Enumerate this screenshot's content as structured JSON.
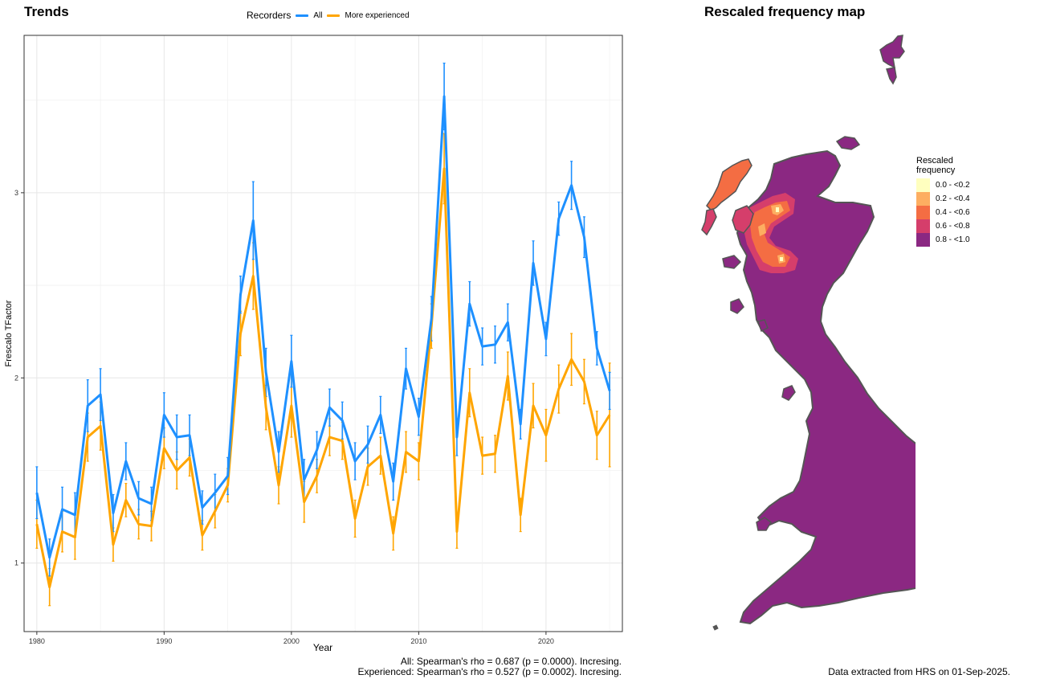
{
  "trends": {
    "title": "Trends",
    "legend_title": "Recorders",
    "stats_all": "All: Spearman's rho = 0.687 (p = 0.0000). Incresing.",
    "stats_exp": "Experienced: Spearman's rho = 0.527 (p = 0.0002). Incresing."
  },
  "map": {
    "title": "Rescaled frequency map",
    "legend_title_line1": "Rescaled",
    "legend_title_line2": "frequency",
    "legend": [
      {
        "label": "0.0 - <0.2",
        "color": "#ffffbf"
      },
      {
        "label": "0.2 - <0.4",
        "color": "#fdae61"
      },
      {
        "label": "0.4 - <0.6",
        "color": "#f46d43"
      },
      {
        "label": "0.6 - <0.8",
        "color": "#d53e6b"
      },
      {
        "label": "0.8 - <1.0",
        "color": "#8b2882"
      }
    ],
    "source": "Data extracted from HRS on 01-Sep-2025."
  },
  "chart_data": {
    "type": "line",
    "xlabel": "Year",
    "ylabel": "Frescalo TFactor",
    "xlim": [
      1979,
      2026
    ],
    "ylim": [
      0.63,
      3.85
    ],
    "xticks": [
      1980,
      1990,
      2000,
      2010,
      2020
    ],
    "yticks": [
      1,
      2,
      3
    ],
    "grid": true,
    "legend_position": "top",
    "x": [
      1980,
      1981,
      1982,
      1983,
      1984,
      1985,
      1986,
      1987,
      1988,
      1989,
      1990,
      1991,
      1992,
      1993,
      1994,
      1995,
      1996,
      1997,
      1998,
      1999,
      2000,
      2001,
      2002,
      2003,
      2004,
      2005,
      2006,
      2007,
      2008,
      2009,
      2010,
      2011,
      2012,
      2013,
      2014,
      2015,
      2016,
      2017,
      2018,
      2019,
      2020,
      2021,
      2022,
      2023,
      2024,
      2025
    ],
    "series": [
      {
        "name": "All",
        "color": "#1e90ff",
        "values": [
          1.38,
          1.03,
          1.29,
          1.26,
          1.85,
          1.91,
          1.27,
          1.55,
          1.35,
          1.32,
          1.8,
          1.68,
          1.69,
          1.3,
          1.38,
          1.47,
          2.45,
          2.85,
          2.03,
          1.6,
          2.09,
          1.45,
          1.61,
          1.84,
          1.77,
          1.55,
          1.64,
          1.8,
          1.44,
          2.05,
          1.79,
          2.32,
          3.52,
          1.68,
          2.4,
          2.17,
          2.18,
          2.3,
          1.75,
          2.62,
          2.21,
          2.86,
          3.04,
          2.76,
          2.16,
          1.93
        ],
        "err": [
          0.14,
          0.1,
          0.12,
          0.12,
          0.14,
          0.14,
          0.1,
          0.1,
          0.09,
          0.09,
          0.12,
          0.12,
          0.11,
          0.09,
          0.1,
          0.1,
          0.1,
          0.21,
          0.13,
          0.11,
          0.14,
          0.11,
          0.1,
          0.1,
          0.1,
          0.1,
          0.1,
          0.1,
          0.1,
          0.11,
          0.1,
          0.12,
          0.18,
          0.1,
          0.12,
          0.1,
          0.1,
          0.1,
          0.08,
          0.12,
          0.09,
          0.09,
          0.13,
          0.11,
          0.09,
          0.1
        ]
      },
      {
        "name": "More experienced",
        "color": "#ffa500",
        "values": [
          1.21,
          0.87,
          1.17,
          1.14,
          1.68,
          1.74,
          1.1,
          1.34,
          1.21,
          1.2,
          1.62,
          1.5,
          1.57,
          1.15,
          1.28,
          1.42,
          2.24,
          2.55,
          1.84,
          1.42,
          1.85,
          1.33,
          1.47,
          1.68,
          1.66,
          1.24,
          1.52,
          1.58,
          1.16,
          1.6,
          1.55,
          2.28,
          3.13,
          1.17,
          1.92,
          1.58,
          1.59,
          2.01,
          1.26,
          1.85,
          1.69,
          1.94,
          2.1,
          1.98,
          1.69,
          1.8
        ],
        "err": [
          0.13,
          0.1,
          0.11,
          0.12,
          0.13,
          0.13,
          0.09,
          0.09,
          0.08,
          0.08,
          0.11,
          0.1,
          0.1,
          0.08,
          0.09,
          0.09,
          0.12,
          0.18,
          0.12,
          0.1,
          0.17,
          0.11,
          0.09,
          0.1,
          0.1,
          0.1,
          0.1,
          0.1,
          0.09,
          0.11,
          0.1,
          0.12,
          0.19,
          0.09,
          0.13,
          0.1,
          0.1,
          0.13,
          0.09,
          0.12,
          0.14,
          0.13,
          0.14,
          0.12,
          0.13,
          0.28
        ]
      }
    ]
  }
}
